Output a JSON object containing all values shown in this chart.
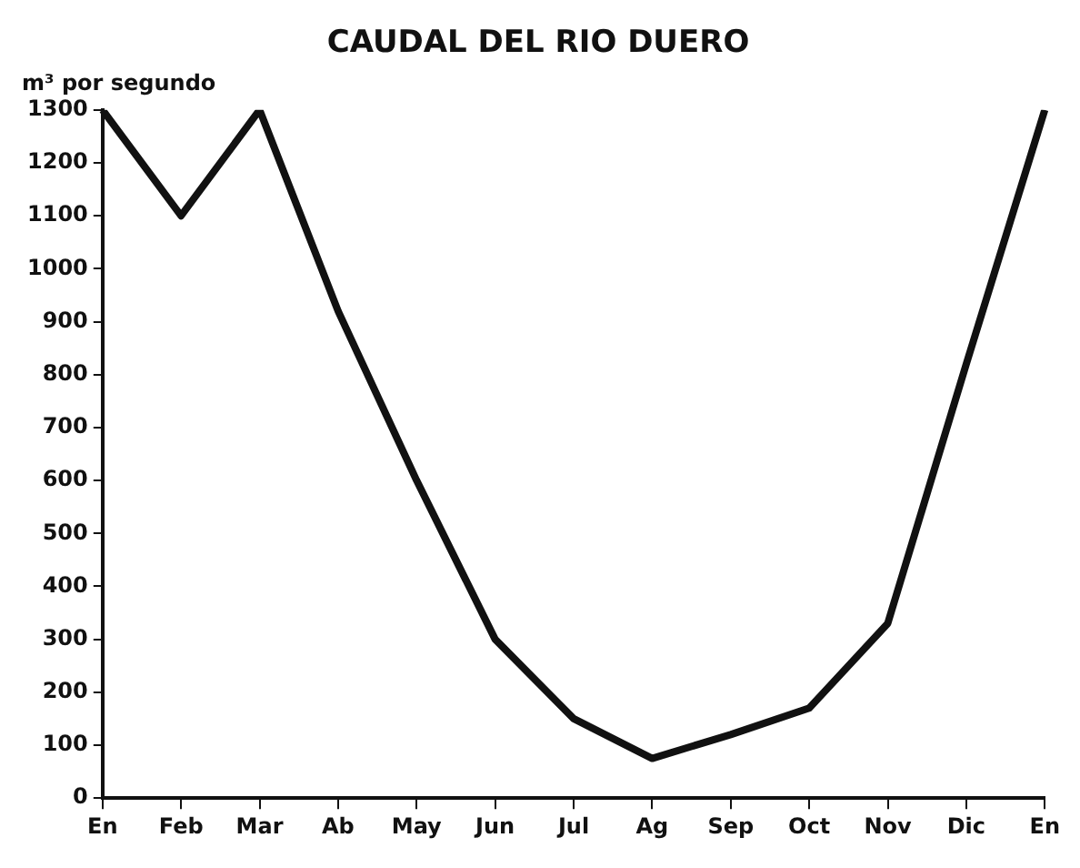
{
  "chart_data": {
    "type": "line",
    "title": "CAUDAL DEL RIO DUERO",
    "ylabel": "m³ por segundo",
    "categories": [
      "En",
      "Feb",
      "Mar",
      "Ab",
      "May",
      "Jun",
      "Jul",
      "Ag",
      "Sep",
      "Oct",
      "Nov",
      "Dic",
      "En"
    ],
    "series": [
      {
        "color": "#111111",
        "values": [
          1300,
          1100,
          1300,
          920,
          600,
          300,
          150,
          75,
          120,
          170,
          330,
          820,
          1300
        ]
      }
    ],
    "ylim": [
      0,
      1300
    ],
    "yticks": [
      0,
      100,
      200,
      300,
      400,
      500,
      600,
      700,
      800,
      900,
      1000,
      1100,
      1200,
      1300
    ],
    "grid": false,
    "legend": false,
    "marker": "none",
    "line_style": "solid"
  }
}
